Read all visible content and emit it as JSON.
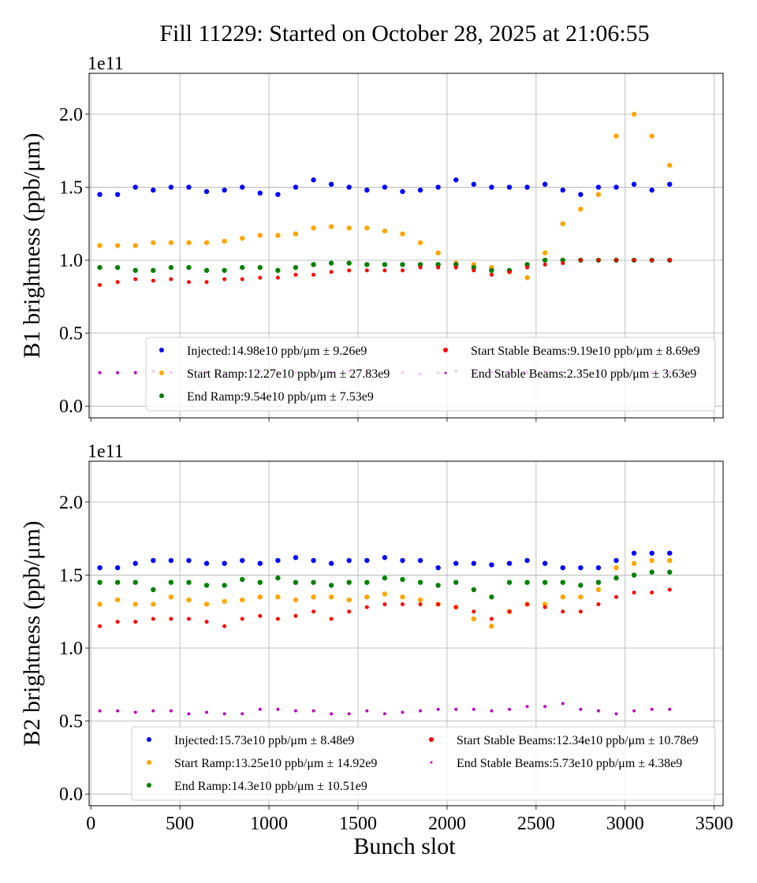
{
  "title": "Fill 11229: Started on October 28, 2025 at 21:06:55",
  "xlabel": "Bunch slot",
  "chart_data": [
    {
      "type": "scatter",
      "ylabel": "B1 brightness (ppb/μm)",
      "y_multiplier": "1e11",
      "xlim": [
        -10,
        3550
      ],
      "ylim": [
        -0.08,
        2.28
      ],
      "xticks": [
        "0",
        "500",
        "1000",
        "1500",
        "2000",
        "2500",
        "3000",
        "3500"
      ],
      "yticks": [
        "0.0",
        "0.5",
        "1.0",
        "1.5",
        "2.0"
      ],
      "grid": true,
      "legend_position": "lower-right",
      "x": [
        50,
        150,
        250,
        350,
        450,
        550,
        650,
        750,
        850,
        950,
        1050,
        1150,
        1250,
        1350,
        1450,
        1550,
        1650,
        1750,
        1850,
        1950,
        2050,
        2150,
        2250,
        2350,
        2450,
        2550,
        2650,
        2750,
        2850,
        2950,
        3050,
        3150,
        3250
      ],
      "series": [
        {
          "name": "Injected:14.98e10 ppb/μm ± 9.26e9",
          "color": "#0000ff",
          "values": [
            1.45,
            1.45,
            1.5,
            1.48,
            1.5,
            1.5,
            1.47,
            1.48,
            1.5,
            1.46,
            1.45,
            1.5,
            1.55,
            1.52,
            1.5,
            1.48,
            1.5,
            1.47,
            1.48,
            1.5,
            1.55,
            1.52,
            1.5,
            1.5,
            1.5,
            1.52,
            1.48,
            1.45,
            1.5,
            1.5,
            1.52,
            1.48,
            1.52
          ]
        },
        {
          "name": "Start Ramp:12.27e10 ppb/μm ± 27.83e9",
          "color": "#ffa500",
          "values": [
            1.1,
            1.1,
            1.1,
            1.12,
            1.12,
            1.12,
            1.12,
            1.13,
            1.15,
            1.17,
            1.17,
            1.18,
            1.22,
            1.23,
            1.22,
            1.22,
            1.2,
            1.18,
            1.12,
            1.05,
            0.98,
            0.97,
            0.95,
            0.92,
            0.88,
            1.05,
            1.25,
            1.35,
            1.45,
            1.85,
            2.0,
            1.85,
            1.65
          ]
        },
        {
          "name": "End Ramp:9.54e10 ppb/μm ± 7.53e9",
          "color": "#008000",
          "values": [
            0.95,
            0.95,
            0.93,
            0.93,
            0.95,
            0.95,
            0.93,
            0.93,
            0.95,
            0.95,
            0.93,
            0.95,
            0.97,
            0.98,
            0.98,
            0.97,
            0.97,
            0.97,
            0.97,
            0.97,
            0.97,
            0.95,
            0.93,
            0.93,
            0.97,
            1.0,
            1.0,
            1.0,
            1.0,
            1.0,
            1.0,
            1.0,
            1.0
          ]
        },
        {
          "name": "Start Stable Beams:9.19e10 ppb/μm ± 8.69e9",
          "color": "#ff0000",
          "values": [
            0.83,
            0.85,
            0.87,
            0.86,
            0.87,
            0.85,
            0.85,
            0.87,
            0.87,
            0.88,
            0.88,
            0.9,
            0.9,
            0.92,
            0.93,
            0.93,
            0.93,
            0.93,
            0.95,
            0.95,
            0.95,
            0.93,
            0.9,
            0.92,
            0.95,
            0.97,
            0.98,
            1.0,
            1.0,
            1.0,
            1.0,
            1.0,
            1.0
          ]
        },
        {
          "name": "End Stable Beams:2.35e10 ppb/μm ± 3.63e9",
          "color": "#bf00bf",
          "values": [
            0.23,
            0.23,
            0.23,
            0.24,
            0.23,
            0.23,
            0.23,
            0.22,
            0.23,
            0.24,
            0.23,
            0.23,
            0.23,
            0.23,
            0.24,
            0.23,
            0.23,
            0.23,
            0.22,
            0.23,
            0.24,
            0.23,
            0.23,
            0.23,
            0.23,
            0.24,
            0.23,
            0.23,
            0.23,
            0.24,
            0.23,
            0.23,
            0.23
          ]
        }
      ]
    },
    {
      "type": "scatter",
      "ylabel": "B2 brightness (ppb/μm)",
      "y_multiplier": "1e11",
      "xlim": [
        -10,
        3550
      ],
      "ylim": [
        -0.08,
        2.28
      ],
      "xticks": [
        "0",
        "500",
        "1000",
        "1500",
        "2000",
        "2500",
        "3000",
        "3500"
      ],
      "yticks": [
        "0.0",
        "0.5",
        "1.0",
        "1.5",
        "2.0"
      ],
      "grid": true,
      "legend_position": "lower-right",
      "x": [
        50,
        150,
        250,
        350,
        450,
        550,
        650,
        750,
        850,
        950,
        1050,
        1150,
        1250,
        1350,
        1450,
        1550,
        1650,
        1750,
        1850,
        1950,
        2050,
        2150,
        2250,
        2350,
        2450,
        2550,
        2650,
        2750,
        2850,
        2950,
        3050,
        3150,
        3250
      ],
      "series": [
        {
          "name": "Injected:15.73e10 ppb/μm ± 8.48e9",
          "color": "#0000ff",
          "values": [
            1.55,
            1.55,
            1.58,
            1.6,
            1.6,
            1.6,
            1.58,
            1.58,
            1.6,
            1.58,
            1.6,
            1.62,
            1.6,
            1.58,
            1.6,
            1.6,
            1.62,
            1.6,
            1.6,
            1.55,
            1.58,
            1.58,
            1.57,
            1.58,
            1.6,
            1.58,
            1.55,
            1.55,
            1.55,
            1.6,
            1.65,
            1.65,
            1.65
          ]
        },
        {
          "name": "Start Ramp:13.25e10 ppb/μm ± 14.92e9",
          "color": "#ffa500",
          "values": [
            1.3,
            1.33,
            1.3,
            1.3,
            1.35,
            1.33,
            1.3,
            1.32,
            1.33,
            1.35,
            1.35,
            1.33,
            1.35,
            1.35,
            1.33,
            1.35,
            1.37,
            1.35,
            1.33,
            1.3,
            1.28,
            1.2,
            1.15,
            1.25,
            1.3,
            1.3,
            1.35,
            1.35,
            1.4,
            1.55,
            1.58,
            1.6,
            1.6
          ]
        },
        {
          "name": "End Ramp:14.3e10 ppb/μm ± 10.51e9",
          "color": "#008000",
          "values": [
            1.45,
            1.45,
            1.45,
            1.4,
            1.45,
            1.45,
            1.43,
            1.43,
            1.47,
            1.45,
            1.48,
            1.45,
            1.45,
            1.43,
            1.45,
            1.45,
            1.48,
            1.47,
            1.45,
            1.43,
            1.45,
            1.4,
            1.35,
            1.45,
            1.45,
            1.45,
            1.45,
            1.43,
            1.45,
            1.48,
            1.5,
            1.52,
            1.52
          ]
        },
        {
          "name": "Start Stable Beams:12.34e10 ppb/μm ± 10.78e9",
          "color": "#ff0000",
          "values": [
            1.15,
            1.18,
            1.18,
            1.2,
            1.2,
            1.2,
            1.18,
            1.15,
            1.2,
            1.22,
            1.2,
            1.22,
            1.25,
            1.2,
            1.25,
            1.28,
            1.3,
            1.3,
            1.3,
            1.3,
            1.28,
            1.25,
            1.2,
            1.25,
            1.3,
            1.28,
            1.25,
            1.25,
            1.3,
            1.35,
            1.38,
            1.38,
            1.4
          ]
        },
        {
          "name": "End Stable Beams:5.73e10 ppb/μm ± 4.38e9",
          "color": "#bf00bf",
          "values": [
            0.57,
            0.57,
            0.56,
            0.57,
            0.57,
            0.55,
            0.56,
            0.55,
            0.55,
            0.58,
            0.58,
            0.57,
            0.57,
            0.55,
            0.55,
            0.57,
            0.55,
            0.56,
            0.57,
            0.58,
            0.58,
            0.58,
            0.57,
            0.58,
            0.6,
            0.6,
            0.62,
            0.58,
            0.57,
            0.55,
            0.57,
            0.58,
            0.58
          ]
        }
      ]
    }
  ]
}
